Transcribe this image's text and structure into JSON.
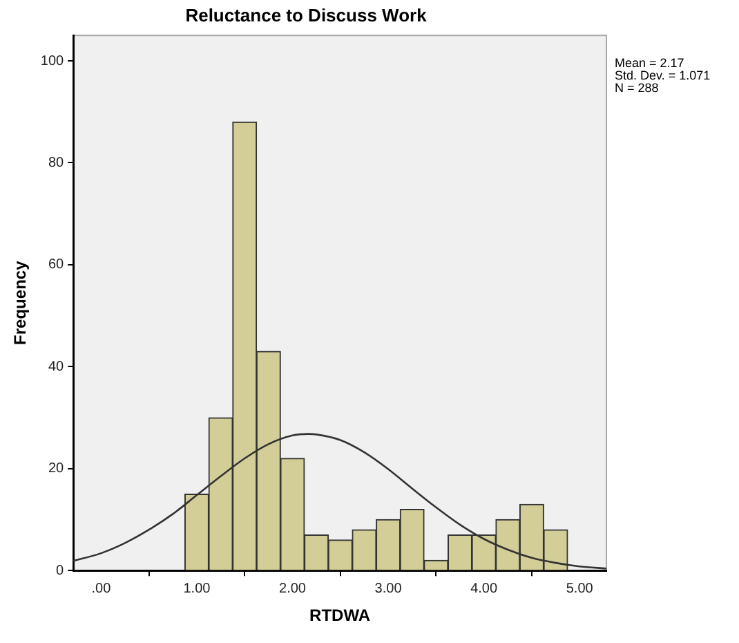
{
  "chart_data": {
    "type": "histogram",
    "title": "Reluctance to Discuss Work",
    "xlabel": "RTDWA",
    "ylabel": "Frequency",
    "bins": [
      0.875,
      1.125,
      1.375,
      1.625,
      1.875,
      2.125,
      2.375,
      2.625,
      2.875,
      3.125,
      3.375,
      3.625,
      3.875,
      4.125,
      4.375,
      4.625,
      4.875
    ],
    "values": [
      15,
      30,
      88,
      43,
      22,
      7,
      6,
      8,
      10,
      12,
      2,
      7,
      7,
      10,
      13,
      8
    ],
    "color": "#d3ce97",
    "series": [
      {
        "type": "line",
        "color": "#333333",
        "x": [
          -0.29,
          0,
          0.25,
          0.5,
          0.75,
          1,
          1.25,
          1.5,
          1.75,
          2,
          2.17,
          2.25,
          2.5,
          2.75,
          3,
          3.25,
          3.5,
          3.75,
          4,
          4.25,
          4.5,
          4.75,
          5,
          5.28
        ],
        "values": [
          1.9,
          3.4,
          5.4,
          8,
          11.1,
          14.8,
          18.5,
          22,
          24.8,
          26.5,
          26.8,
          26.7,
          25.6,
          23.2,
          19.9,
          16.1,
          12.4,
          9,
          6.2,
          4.1,
          2.5,
          1.5,
          0.8,
          0.4
        ]
      }
    ],
    "xlim": [
      -0.29,
      5.28
    ],
    "xticks": [
      {
        "value": 0,
        "label": ".00"
      },
      {
        "value": 1,
        "label": "1.00"
      },
      {
        "value": 2,
        "label": "2.00"
      },
      {
        "value": 3,
        "label": "3.00"
      },
      {
        "value": 4,
        "label": "4.00"
      },
      {
        "value": 5,
        "label": "5.00"
      }
    ],
    "ylim": [
      0,
      105
    ],
    "yticks": [
      0,
      20,
      40,
      60,
      80,
      100
    ],
    "grid": false,
    "legend": false,
    "marker": "none",
    "annotations": [
      "Mean = 2.17",
      "Std. Dev. = 1.071",
      "N = 288"
    ]
  }
}
